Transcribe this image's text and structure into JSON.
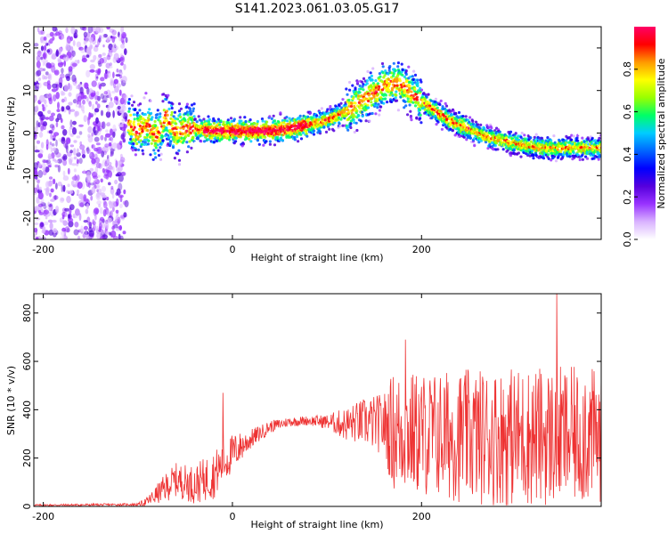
{
  "figure_title": "S141.2023.061.03.05.G17",
  "chart_data": [
    {
      "type": "heatmap",
      "xlabel": "Height of straight line (km)",
      "ylabel": "Frequency (Hz)",
      "xlim": [
        -210,
        390
      ],
      "ylim": [
        -25,
        25
      ],
      "x_ticks": [
        -200,
        0,
        200
      ],
      "y_ticks": [
        -20,
        -10,
        0,
        10,
        20
      ],
      "colorbar": {
        "label": "Normalized spectral amplitude",
        "range": [
          0.0,
          1.0
        ],
        "ticks": [
          0.0,
          0.2,
          0.4,
          0.6,
          0.8
        ],
        "colors": [
          "#ffffff",
          "#d9b3ff",
          "#9933ff",
          "#5500dd",
          "#0000ff",
          "#0066ff",
          "#00ccff",
          "#00ff66",
          "#99ff00",
          "#ffff00",
          "#ff9900",
          "#ff0000",
          "#ff0066"
        ]
      },
      "ridge": {
        "x": [
          -110,
          -100,
          -90,
          -80,
          -70,
          -60,
          -50,
          -40,
          -20,
          0,
          20,
          40,
          60,
          80,
          100,
          120,
          140,
          160,
          175,
          190,
          210,
          230,
          250,
          270,
          290,
          310,
          330,
          350,
          370,
          390
        ],
        "y": [
          3,
          0,
          2,
          -1,
          4,
          0,
          1,
          1,
          0.5,
          0.5,
          0.5,
          0.5,
          1,
          2,
          3,
          5,
          8,
          11,
          12,
          9,
          6,
          3,
          1,
          -1,
          -2,
          -3,
          -3.5,
          -3.5,
          -3.5,
          -3.5
        ]
      },
      "noise_region_x": [
        -210,
        -112
      ]
    },
    {
      "type": "line",
      "xlabel": "Height of straight line (km)",
      "ylabel": "SNR (10 * v/v)",
      "xlim": [
        -210,
        390
      ],
      "ylim": [
        0,
        880
      ],
      "x_ticks": [
        -200,
        0,
        200
      ],
      "y_ticks": [
        0,
        200,
        400,
        600,
        800
      ],
      "line_color": "#ee3333",
      "envelope": {
        "x": [
          -210,
          -100,
          -90,
          -70,
          -60,
          -40,
          -20,
          0,
          20,
          40,
          60,
          80,
          100,
          120,
          140,
          160,
          170,
          200,
          250,
          300,
          350,
          390
        ],
        "mean": [
          5,
          8,
          20,
          80,
          110,
          90,
          130,
          220,
          280,
          330,
          350,
          355,
          350,
          340,
          350,
          340,
          310,
          300,
          290,
          290,
          290,
          290
        ],
        "spread": [
          4,
          5,
          20,
          60,
          70,
          80,
          100,
          80,
          40,
          25,
          20,
          20,
          30,
          70,
          100,
          130,
          250,
          260,
          280,
          290,
          290,
          280
        ]
      },
      "peaks": [
        {
          "x": 183,
          "y": 690
        },
        {
          "x": -10,
          "y": 470
        },
        {
          "x": 343,
          "y": 880
        },
        {
          "x": 373,
          "y": 500
        }
      ]
    }
  ]
}
